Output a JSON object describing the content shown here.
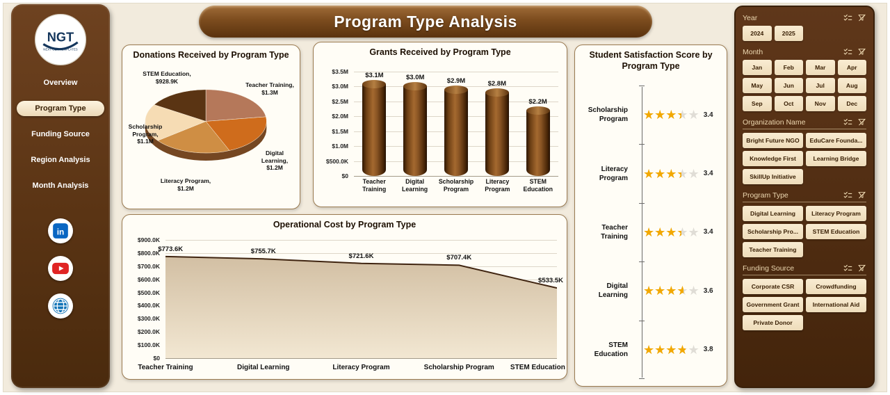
{
  "page": {
    "title": "Program Type Analysis"
  },
  "sidebar": {
    "logo": {
      "text": "NGT",
      "subtext": "NEXT GEN TEMPLATES"
    },
    "items": [
      {
        "label": "Overview"
      },
      {
        "label": "Program Type"
      },
      {
        "label": "Funding Source"
      },
      {
        "label": "Region Analysis"
      },
      {
        "label": "Month Analysis"
      }
    ],
    "active_item": "Program Type",
    "social": [
      {
        "name": "linkedin"
      },
      {
        "name": "youtube"
      },
      {
        "name": "website"
      }
    ]
  },
  "chart_data": [
    {
      "id": "donations_pie",
      "type": "pie",
      "title": "Donations Received by Program Type",
      "labels": [
        "Teacher Training",
        "Digital Learning",
        "Literacy Program",
        "Scholarship Program",
        "STEM Education"
      ],
      "values": [
        1300000,
        1200000,
        1200000,
        1100000,
        928900
      ],
      "value_labels": [
        "$1.3M",
        "$1.2M",
        "$1.2M",
        "$1.1M",
        "$928.9K"
      ],
      "colors": [
        "#b5785a",
        "#cf6c1c",
        "#cf8e44",
        "#f6dcb4",
        "#5a3413"
      ],
      "side_color": "#754722"
    },
    {
      "id": "grants_bars",
      "type": "bar",
      "title": "Grants Received by Program Type",
      "categories": [
        "Teacher Training",
        "Digital Learning",
        "Scholarship Program",
        "Literacy Program",
        "STEM Education"
      ],
      "values": [
        3100000,
        3000000,
        2900000,
        2800000,
        2200000
      ],
      "data_labels": [
        "$3.1M",
        "$3.0M",
        "$2.9M",
        "$2.8M",
        "$2.2M"
      ],
      "ylim": [
        0,
        3500000
      ],
      "ytick_values": [
        0,
        500000,
        1000000,
        1500000,
        2000000,
        2500000,
        3000000,
        3500000
      ],
      "ytick_labels": [
        "$0",
        "$500.0K",
        "$1.0M",
        "$1.5M",
        "$2.0M",
        "$2.5M",
        "$3.0M",
        "$3.5M"
      ],
      "grid": true,
      "legend": "none"
    },
    {
      "id": "opcost_area",
      "type": "area",
      "title": "Operational Cost by Program Type",
      "categories": [
        "Teacher Training",
        "Digital Learning",
        "Literacy Program",
        "Scholarship Program",
        "STEM Education"
      ],
      "values": [
        773600,
        755700,
        721600,
        707400,
        533500
      ],
      "data_labels": [
        "$773.6K",
        "$755.7K",
        "$721.6K",
        "$707.4K",
        "$533.5K"
      ],
      "ylim": [
        0,
        900000
      ],
      "ytick_values": [
        0,
        100000,
        200000,
        300000,
        400000,
        500000,
        600000,
        700000,
        800000,
        900000
      ],
      "ytick_labels": [
        "$0",
        "$100.0K",
        "$200.0K",
        "$300.0K",
        "$400.0K",
        "$500.0K",
        "$600.0K",
        "$700.0K",
        "$800.0K",
        "$900.0K"
      ],
      "grid": true,
      "legend": "none",
      "line_color": "#3f2410",
      "fill_top": "#d2bfa3",
      "fill_bottom": "#f2e7d2"
    },
    {
      "id": "satisfaction_rating",
      "type": "rating",
      "title": "Student Satisfaction Score by Program Type",
      "categories": [
        "Scholarship Program",
        "Literacy Program",
        "Teacher Training",
        "Digital Learning",
        "STEM Education"
      ],
      "values": [
        3.4,
        3.4,
        3.4,
        3.6,
        3.8
      ],
      "max": 5,
      "star_color": "#f2a800"
    }
  ],
  "filters": {
    "sections": [
      {
        "label": "Year",
        "cols": 4,
        "underline": false,
        "items": [
          "2024",
          "2025"
        ]
      },
      {
        "label": "Month",
        "cols": 4,
        "underline": false,
        "items": [
          "Jan",
          "Feb",
          "Mar",
          "Apr",
          "May",
          "Jun",
          "Jul",
          "Aug",
          "Sep",
          "Oct",
          "Nov",
          "Dec"
        ]
      },
      {
        "label": "Organization Name",
        "cols": 2,
        "underline": true,
        "items": [
          "Bright Future NGO",
          "EduCare Founda...",
          "Knowledge First",
          "Learning Bridge",
          "SkillUp Initiative"
        ]
      },
      {
        "label": "Program Type",
        "cols": 2,
        "underline": true,
        "items": [
          "Digital Learning",
          "Literacy Program",
          "Scholarship Pro...",
          "STEM Education",
          "Teacher Training"
        ]
      },
      {
        "label": "Funding Source",
        "cols": 2,
        "underline": true,
        "items": [
          "Corporate CSR",
          "Crowdfunding",
          "Government Grant",
          "International Aid",
          "Private Donor"
        ]
      }
    ],
    "icons": [
      "select-all",
      "clear-filter"
    ]
  }
}
